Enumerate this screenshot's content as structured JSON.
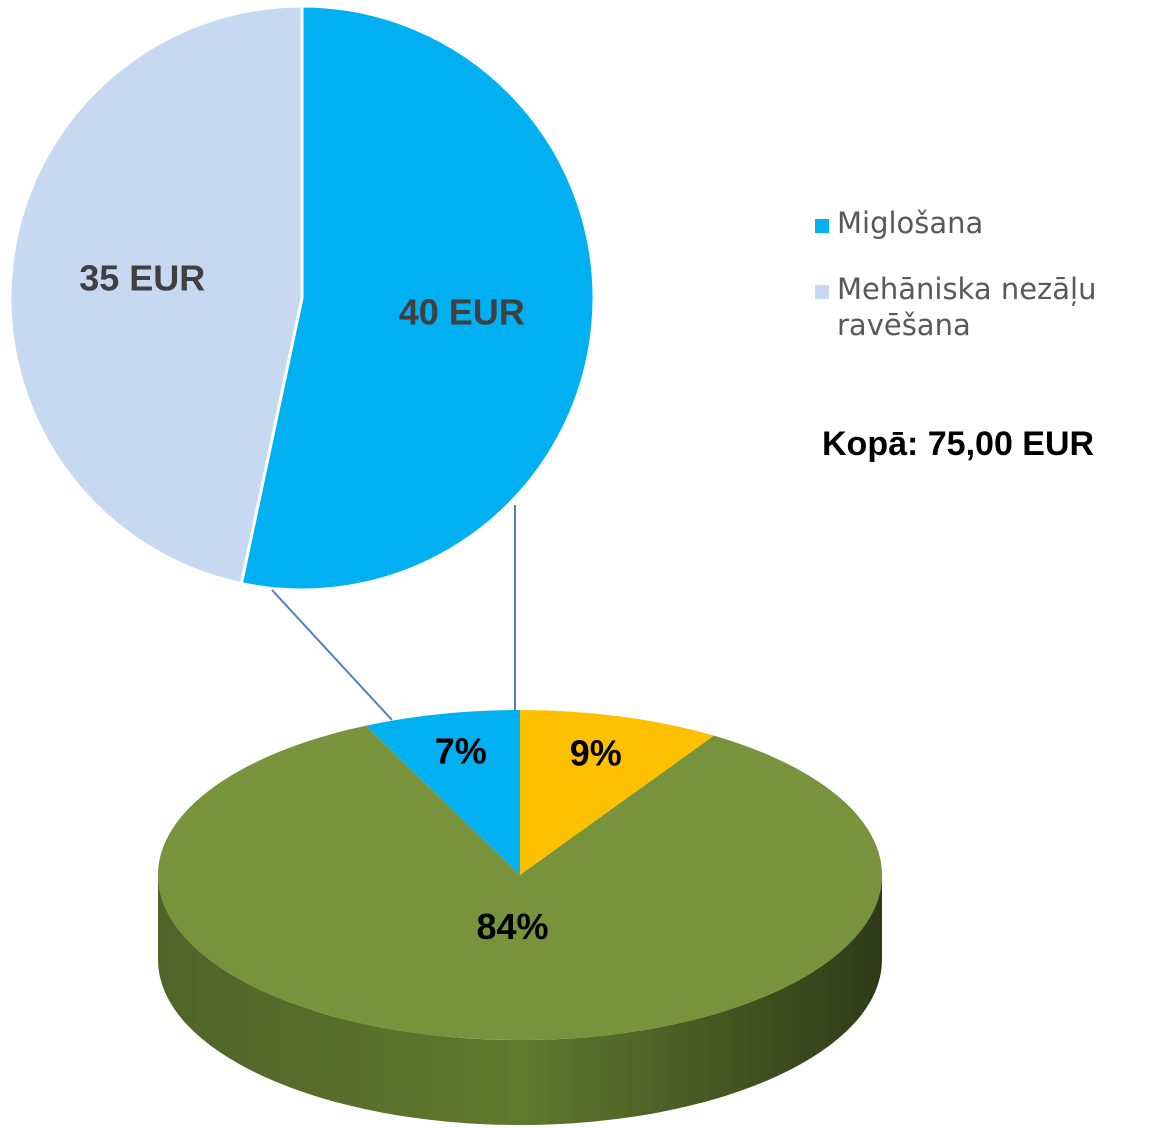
{
  "chart_data": [
    {
      "type": "pie",
      "categories": [
        "Miglošana",
        "Mehāniska nezāļu ravēšana"
      ],
      "values": [
        40,
        35
      ],
      "value_labels": [
        "40 EUR",
        "35 EUR"
      ],
      "colors": [
        "#00b0f0",
        "#c6d9f1"
      ],
      "legend": "right",
      "annotation": "Kopā: 75,00 EUR"
    },
    {
      "type": "pie3d",
      "values": [
        9,
        84,
        7
      ],
      "value_labels": [
        "9%",
        "84%",
        "7%"
      ],
      "colors": [
        "#ffc000",
        "#77933c",
        "#00b0f0"
      ]
    }
  ]
}
